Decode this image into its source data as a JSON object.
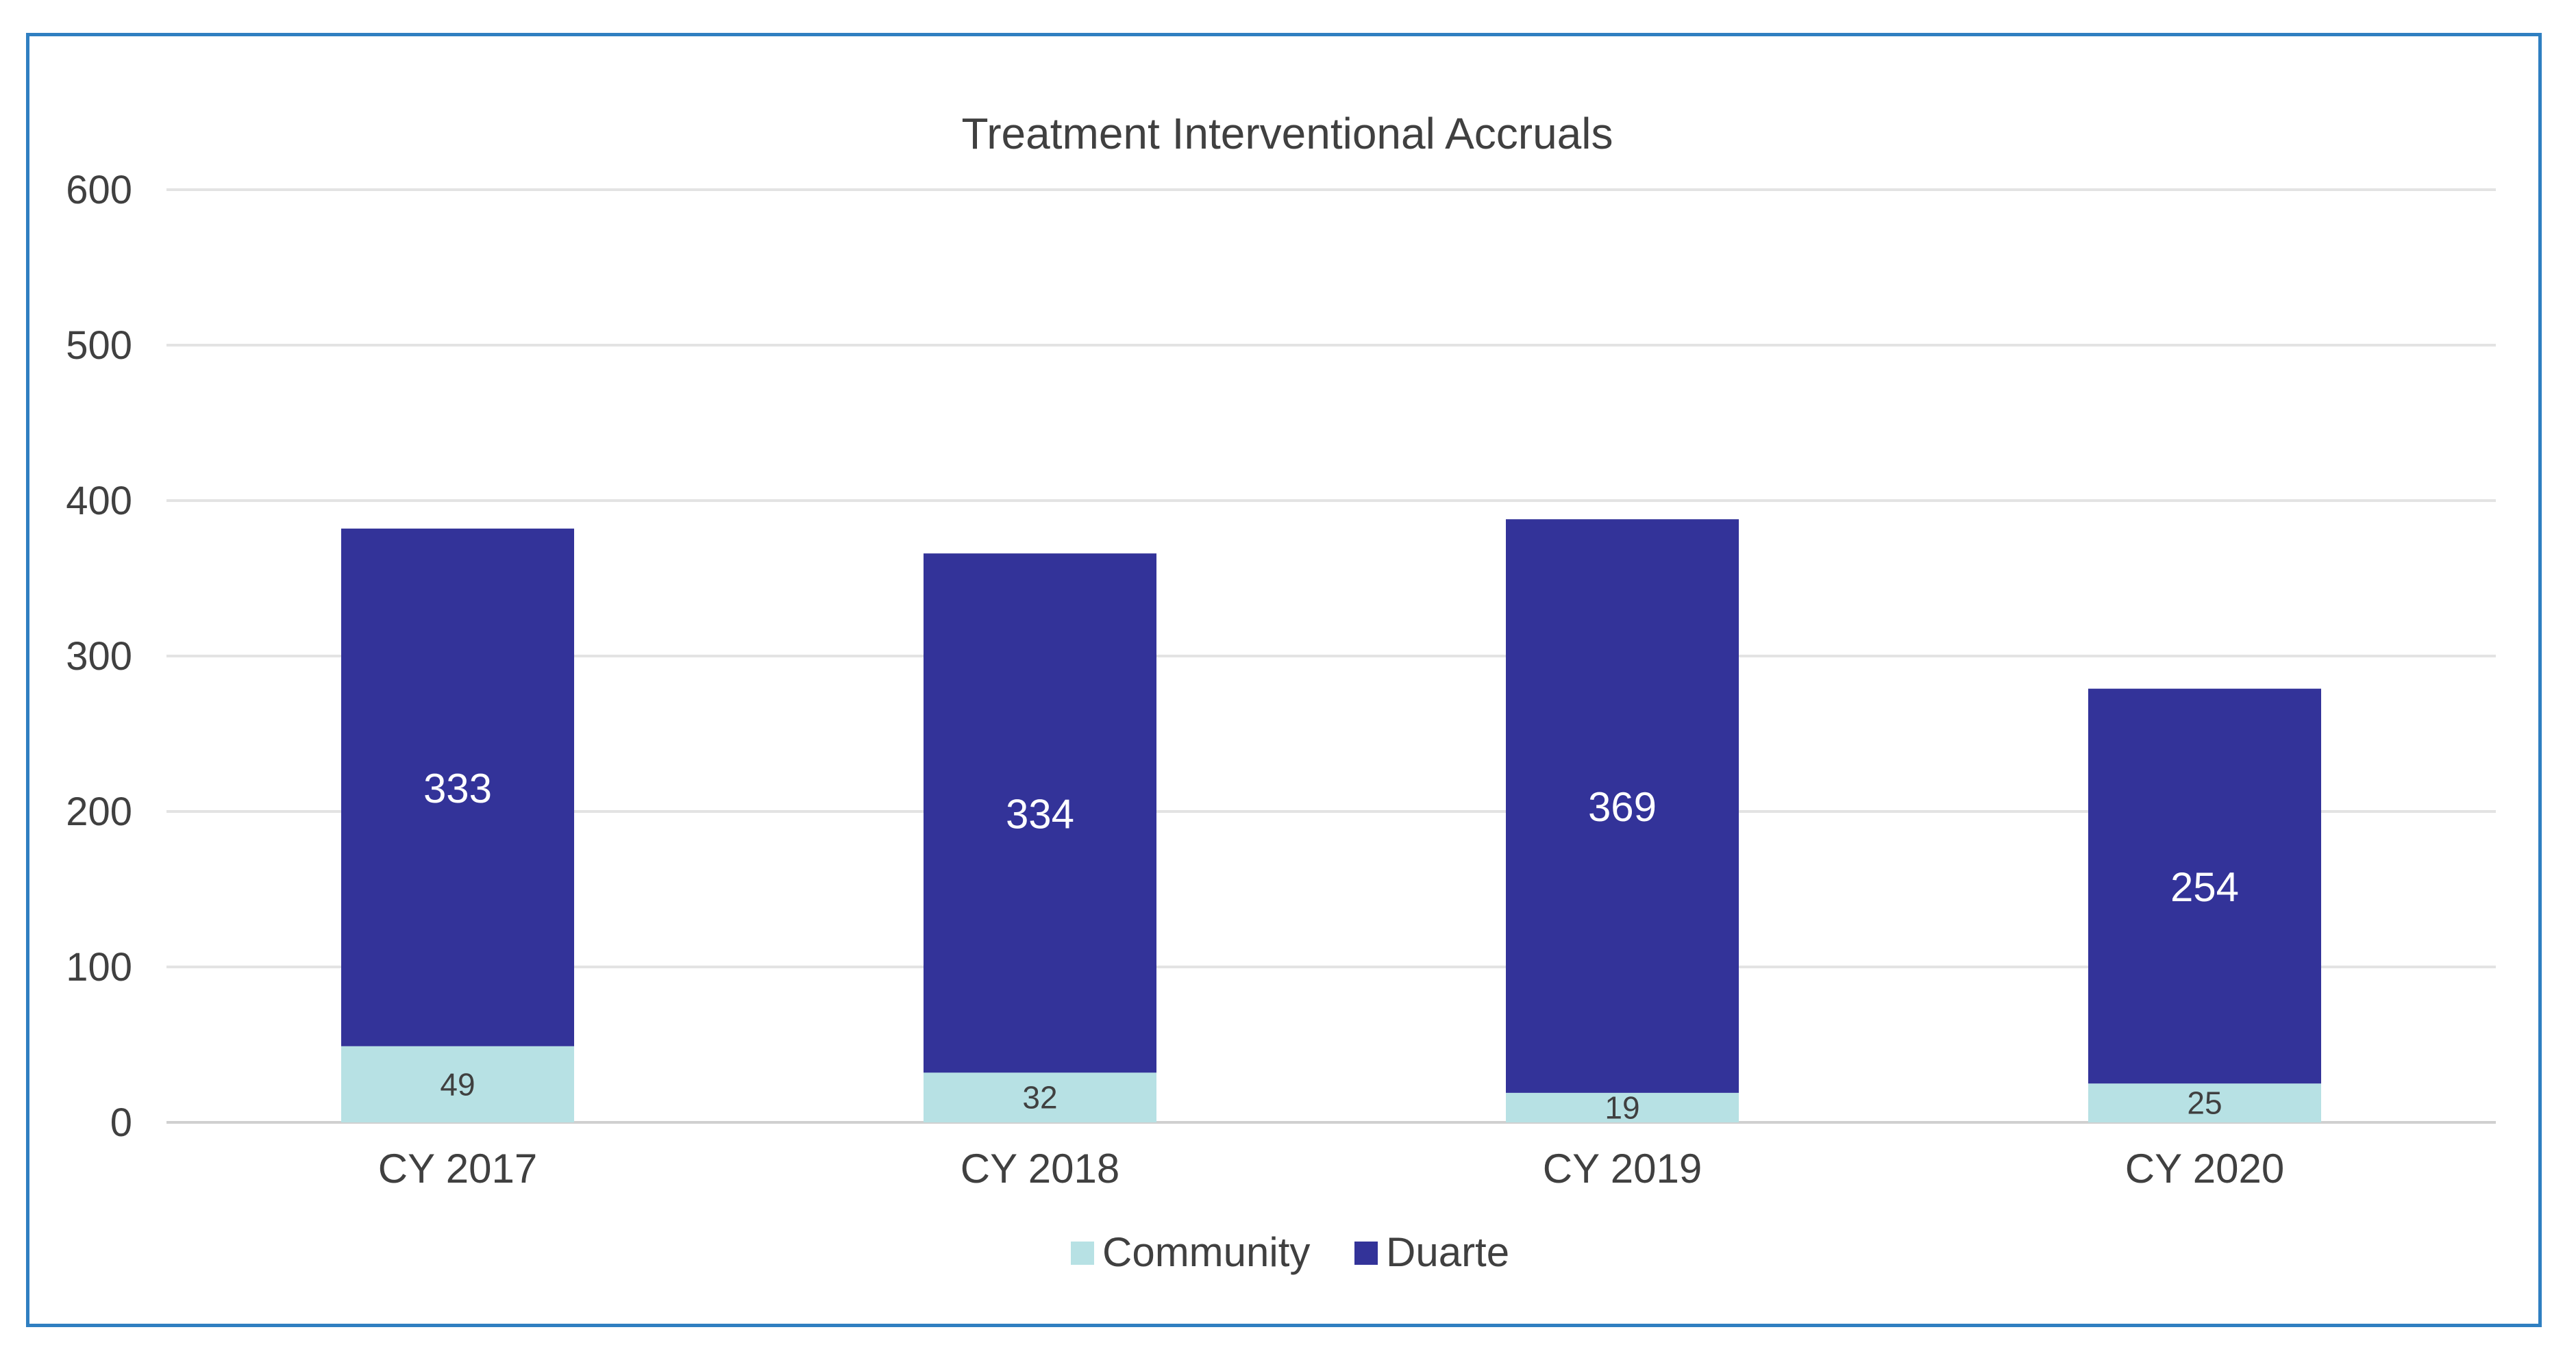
{
  "chart_data": {
    "type": "bar",
    "stacked": true,
    "title": "Treatment Interventional Accruals",
    "xlabel": "",
    "ylabel": "",
    "categories": [
      "CY 2017",
      "CY 2018",
      "CY 2019",
      "CY 2020"
    ],
    "series": [
      {
        "name": "Community",
        "values": [
          49,
          32,
          19,
          25
        ],
        "color": "#b7e1e4"
      },
      {
        "name": "Duarte",
        "values": [
          333,
          334,
          369,
          254
        ],
        "color": "#333399"
      }
    ],
    "ylim": [
      0,
      600
    ],
    "yticks": [
      0,
      100,
      200,
      300,
      400,
      500,
      600
    ],
    "grid": true,
    "legend": "bottom-center"
  }
}
